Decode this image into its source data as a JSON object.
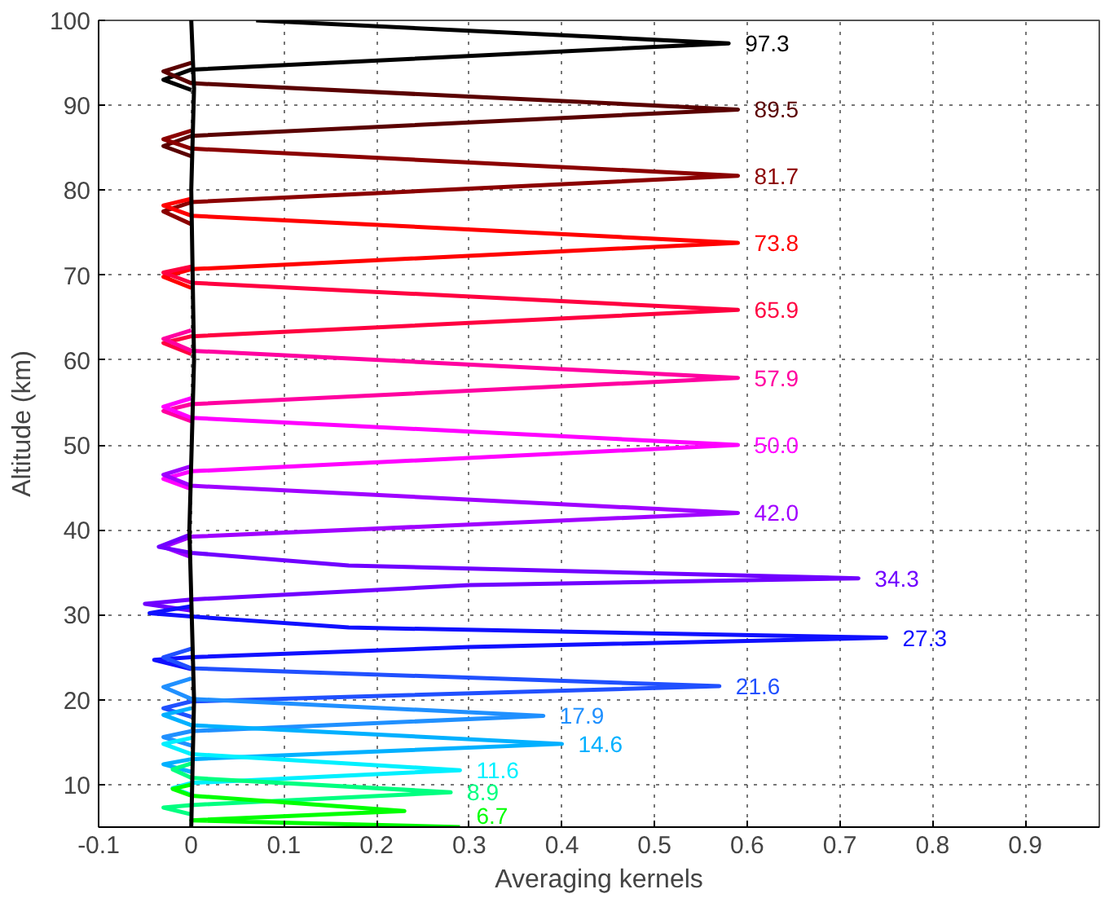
{
  "chart_data": {
    "type": "line",
    "xlabel": "Averaging kernels",
    "ylabel": "Altitude (km)",
    "xlim": [
      -0.1,
      0.98
    ],
    "ylim": [
      5,
      100
    ],
    "xticks": [
      -0.1,
      0,
      0.1,
      0.2,
      0.3,
      0.4,
      0.5,
      0.6,
      0.7,
      0.8,
      0.9
    ],
    "yticks": [
      10,
      20,
      30,
      40,
      50,
      60,
      70,
      80,
      90,
      100
    ],
    "grid": true,
    "series": [
      {
        "name": "97.3",
        "color": "#000000",
        "x": [
          0.07,
          0.58,
          0,
          -0.03,
          0
        ],
        "values": [
          100,
          97.3,
          94.2,
          93,
          91.8
        ]
      },
      {
        "name": "89.5",
        "color": "#5a0000",
        "x": [
          0,
          -0.03,
          0,
          0.59,
          0,
          -0.03,
          0
        ],
        "values": [
          95,
          94,
          92.6,
          89.5,
          86.4,
          85.2,
          84
        ]
      },
      {
        "name": "81.7",
        "color": "#8b0000",
        "x": [
          0,
          -0.03,
          0,
          0.59,
          0,
          -0.03,
          0
        ],
        "values": [
          87,
          86,
          84.9,
          81.7,
          78.6,
          77.5,
          76
        ]
      },
      {
        "name": "73.8",
        "color": "#ff0000",
        "x": [
          0,
          -0.03,
          0,
          0.59,
          0,
          -0.03,
          0
        ],
        "values": [
          79,
          78.2,
          77,
          73.8,
          70.7,
          69.8,
          68.5
        ]
      },
      {
        "name": "65.9",
        "color": "#ff0040",
        "x": [
          0,
          -0.03,
          0,
          0.59,
          0,
          -0.03,
          0
        ],
        "values": [
          71,
          70.3,
          69.1,
          65.9,
          62.8,
          62,
          60.7
        ]
      },
      {
        "name": "57.9",
        "color": "#ff00a0",
        "x": [
          0,
          -0.03,
          0,
          0.59,
          0,
          -0.03,
          0
        ],
        "values": [
          63.5,
          62.5,
          61.1,
          57.9,
          54.8,
          54,
          52.8
        ]
      },
      {
        "name": "50.0",
        "color": "#ff00ff",
        "x": [
          0,
          -0.03,
          0,
          0.59,
          0,
          -0.03,
          0
        ],
        "values": [
          55.5,
          54.5,
          53.2,
          50.0,
          46.9,
          46,
          44.8
        ]
      },
      {
        "name": "42.0",
        "color": "#a000ff",
        "x": [
          0,
          -0.03,
          0,
          0.59,
          0,
          -0.03,
          0
        ],
        "values": [
          47.5,
          46.5,
          45.2,
          42.0,
          39.2,
          38,
          36.8
        ]
      },
      {
        "name": "34.3",
        "color": "#7000ff",
        "x": [
          0,
          -0.035,
          0,
          0.17,
          0.72,
          0.3,
          0,
          -0.05,
          0
        ],
        "values": [
          39.5,
          38,
          37.3,
          35.8,
          34.3,
          33.5,
          31.8,
          31.3,
          30.5
        ]
      },
      {
        "name": "27.3",
        "color": "#1010ff",
        "x": [
          0,
          -0.045,
          0,
          0.17,
          0.75,
          0.3,
          0,
          -0.04,
          0
        ],
        "values": [
          31,
          30.2,
          29.8,
          28.5,
          27.3,
          26.2,
          25,
          24.7,
          23.6
        ]
      },
      {
        "name": "21.6",
        "color": "#2050ff",
        "x": [
          0,
          -0.03,
          0,
          0.57,
          0,
          -0.03,
          0
        ],
        "values": [
          26,
          25,
          23.7,
          21.6,
          19.8,
          19,
          18
        ]
      },
      {
        "name": "17.9",
        "color": "#2090ff",
        "x": [
          0,
          -0.03,
          0,
          0.38,
          0,
          -0.03,
          0
        ],
        "values": [
          22.5,
          21.5,
          20.1,
          18.1,
          16.3,
          15.6,
          14.6
        ]
      },
      {
        "name": "14.6",
        "color": "#00b0ff",
        "x": [
          0,
          -0.03,
          0,
          0.4,
          0,
          -0.03,
          0
        ],
        "values": [
          19,
          18.2,
          17,
          14.8,
          13,
          12.4,
          11.5
        ]
      },
      {
        "name": "11.6",
        "color": "#00f0ff",
        "x": [
          0,
          -0.03,
          0,
          0.29,
          0,
          -0.02,
          0
        ],
        "values": [
          15.5,
          14.8,
          13.6,
          11.7,
          10.2,
          9.6,
          8.8
        ]
      },
      {
        "name": "8.9",
        "color": "#00ff80",
        "x": [
          0,
          -0.02,
          0,
          0.28,
          0,
          -0.03,
          0
        ],
        "values": [
          12.5,
          11.8,
          10.8,
          9.1,
          7.6,
          7.3,
          6.5
        ]
      },
      {
        "name": "6.7",
        "color": "#00ff00",
        "x": [
          0,
          -0.02,
          0,
          0.23,
          0,
          0.29
        ],
        "values": [
          10,
          9.5,
          8.7,
          6.9,
          5.8,
          5
        ]
      },
      {
        "color": "#000000",
        "x": [
          0,
          0.003,
          -0.002,
          0.003,
          0,
          0.003,
          0
        ],
        "values": [
          5,
          20,
          40,
          60,
          80,
          92,
          100
        ]
      }
    ]
  }
}
